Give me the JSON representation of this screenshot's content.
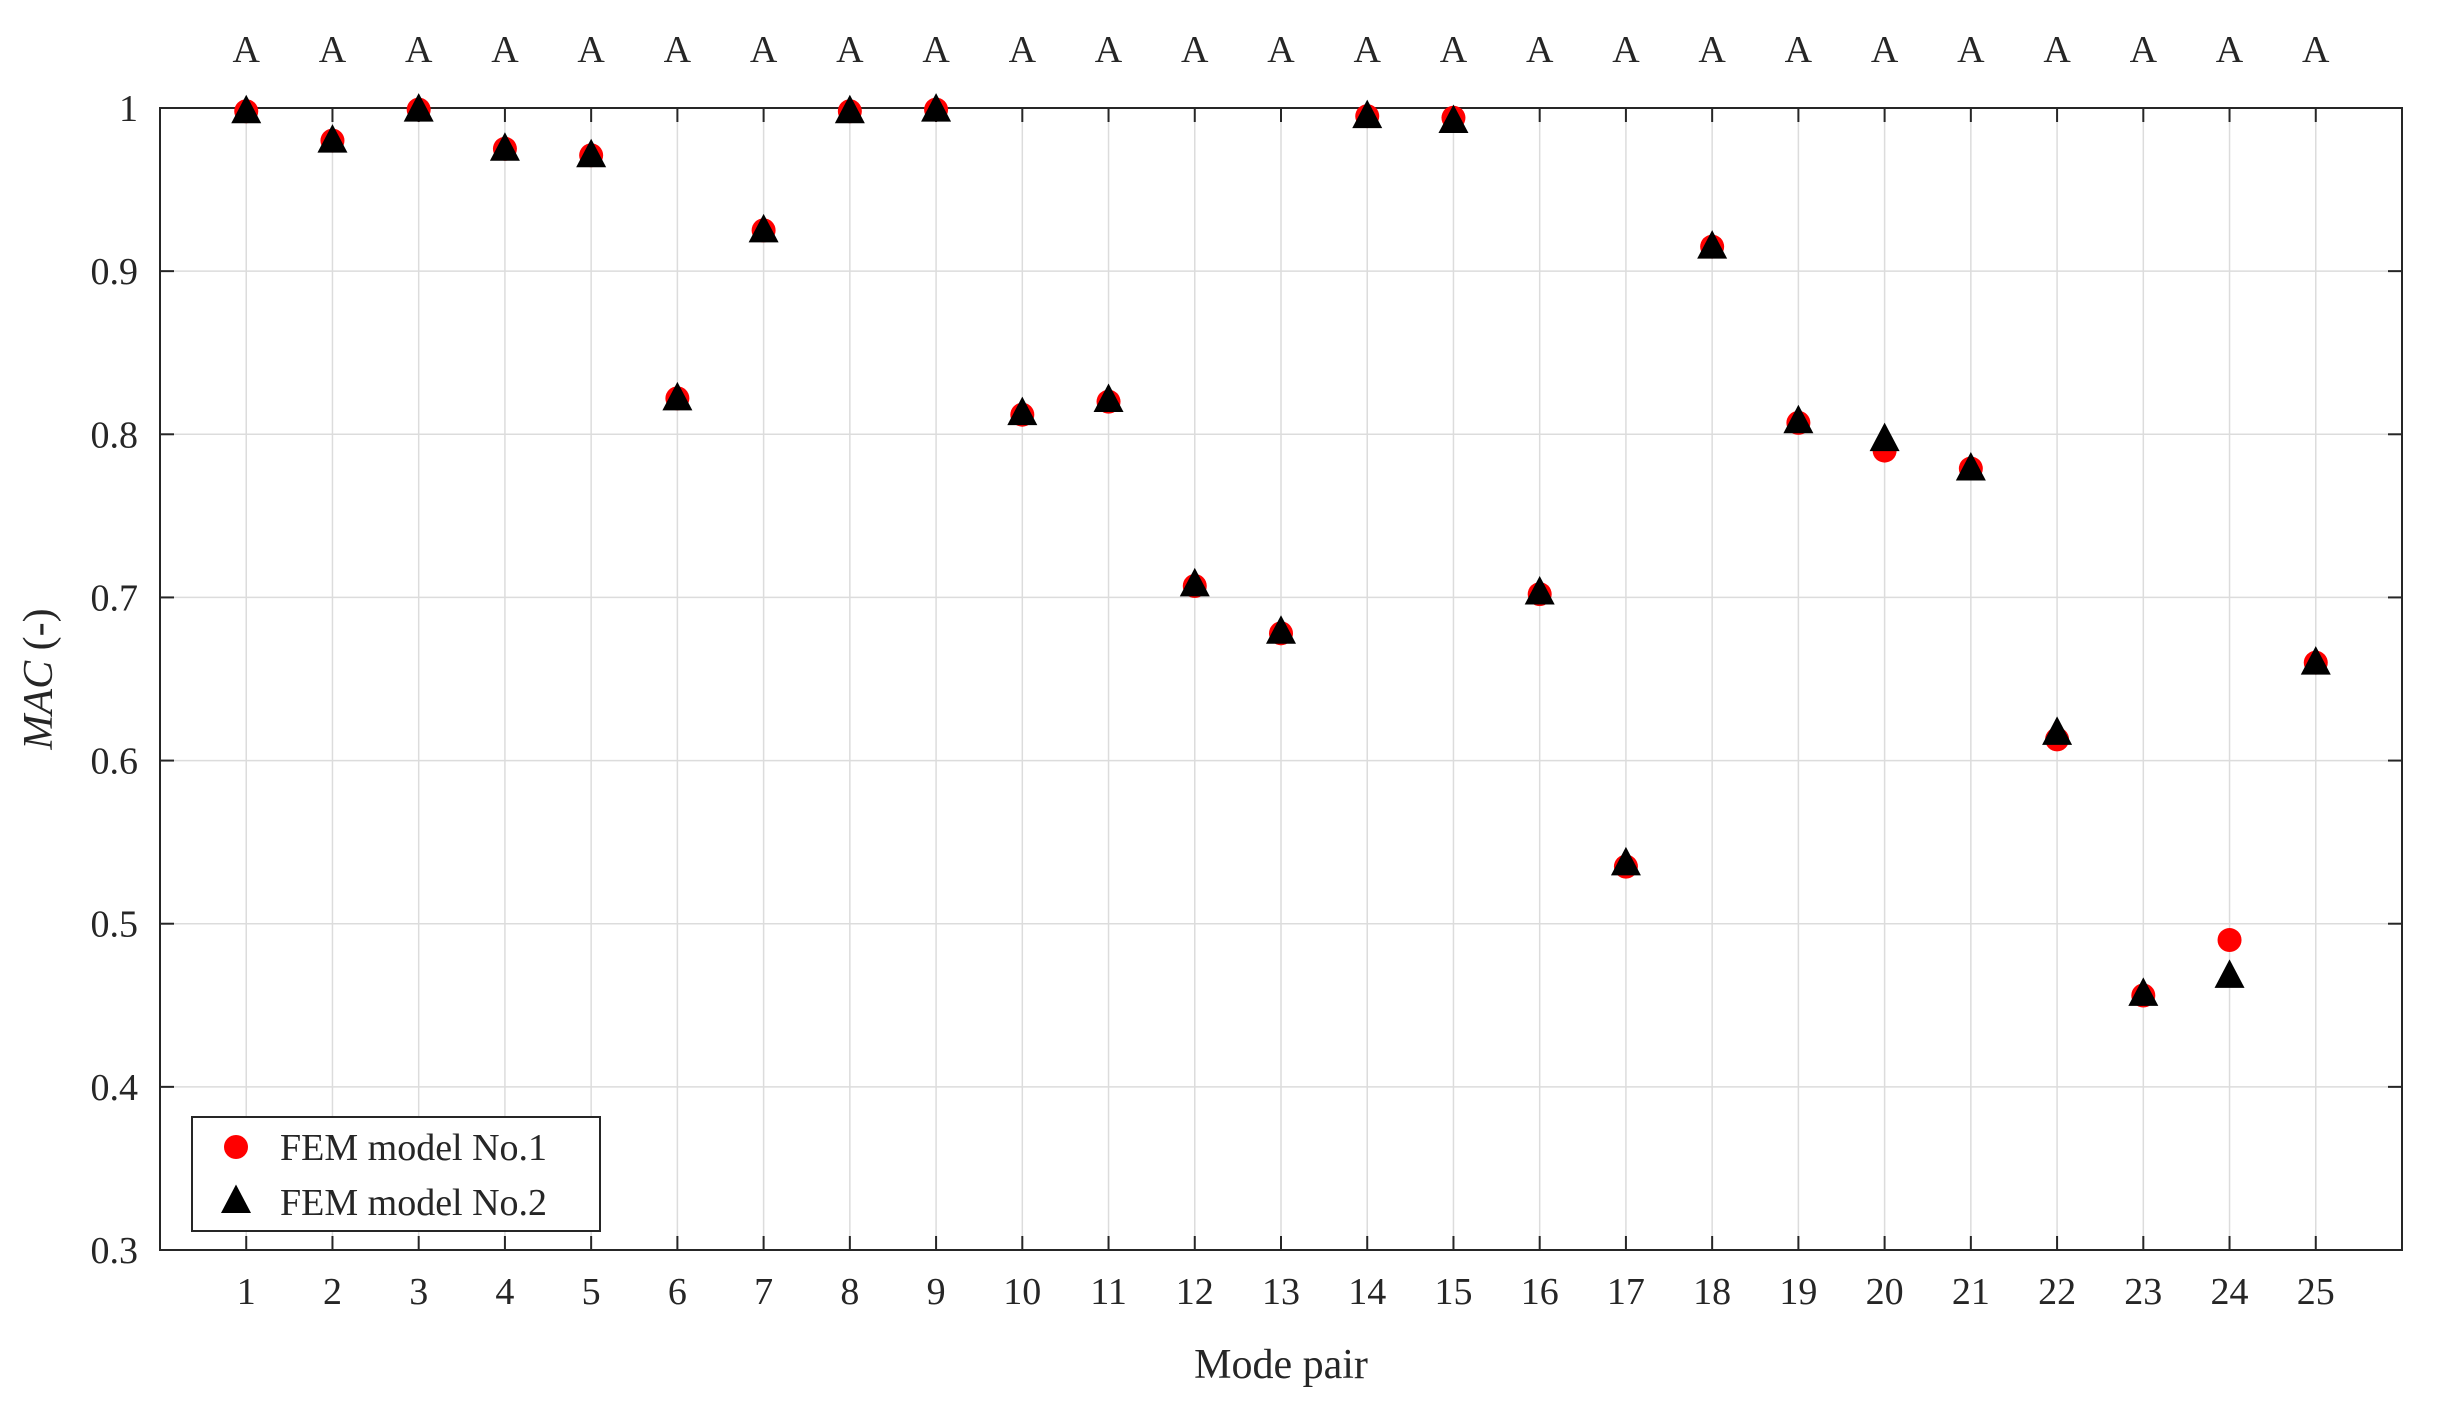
{
  "chart_data": {
    "type": "scatter",
    "xlabel": "Mode pair",
    "ylabel_italic": "MAC",
    "ylabel_suffix": " (-)",
    "xlim": [
      0,
      26
    ],
    "ylim": [
      0.3,
      1.0
    ],
    "xticks": [
      1,
      2,
      3,
      4,
      5,
      6,
      7,
      8,
      9,
      10,
      11,
      12,
      13,
      14,
      15,
      16,
      17,
      18,
      19,
      20,
      21,
      22,
      23,
      24,
      25
    ],
    "xtick_labels": [
      "1",
      "2",
      "3",
      "4",
      "5",
      "6",
      "7",
      "8",
      "9",
      "10",
      "11",
      "12",
      "13",
      "14",
      "15",
      "16",
      "17",
      "18",
      "19",
      "20",
      "21",
      "22",
      "23",
      "24",
      "25"
    ],
    "yticks": [
      0.3,
      0.4,
      0.5,
      0.6,
      0.7,
      0.8,
      0.9,
      1.0
    ],
    "ytick_labels": [
      "0.3",
      "0.4",
      "0.5",
      "0.6",
      "0.7",
      "0.8",
      "0.9",
      "1"
    ],
    "top_labels": [
      "A",
      "A",
      "A",
      "A",
      "A",
      "A",
      "A",
      "A",
      "A",
      "A",
      "A",
      "A",
      "A",
      "A",
      "A",
      "A",
      "A",
      "A",
      "A",
      "A",
      "A",
      "A",
      "A",
      "A",
      "A"
    ],
    "grid": true,
    "legend_position": "bottom-left",
    "series": [
      {
        "name": "FEM model No.1",
        "marker": "circle",
        "color": "#ff0000",
        "x": [
          1,
          2,
          3,
          4,
          5,
          6,
          7,
          8,
          9,
          10,
          11,
          12,
          13,
          14,
          15,
          16,
          17,
          18,
          19,
          20,
          21,
          22,
          23,
          24,
          25
        ],
        "values": [
          0.998,
          0.98,
          0.999,
          0.975,
          0.971,
          0.822,
          0.925,
          0.998,
          0.999,
          0.812,
          0.82,
          0.707,
          0.678,
          0.995,
          0.994,
          0.702,
          0.535,
          0.915,
          0.807,
          0.79,
          0.779,
          0.613,
          0.456,
          0.49,
          0.66
        ]
      },
      {
        "name": "FEM model No.2",
        "marker": "triangle",
        "color": "#000000",
        "x": [
          1,
          2,
          3,
          4,
          5,
          6,
          7,
          8,
          9,
          10,
          11,
          12,
          13,
          14,
          15,
          16,
          17,
          18,
          19,
          20,
          21,
          22,
          23,
          24,
          25
        ],
        "values": [
          0.998,
          0.98,
          0.999,
          0.975,
          0.971,
          0.822,
          0.925,
          0.998,
          0.999,
          0.813,
          0.821,
          0.708,
          0.679,
          0.995,
          0.992,
          0.703,
          0.537,
          0.915,
          0.808,
          0.797,
          0.779,
          0.617,
          0.457,
          0.468,
          0.66
        ]
      }
    ]
  }
}
